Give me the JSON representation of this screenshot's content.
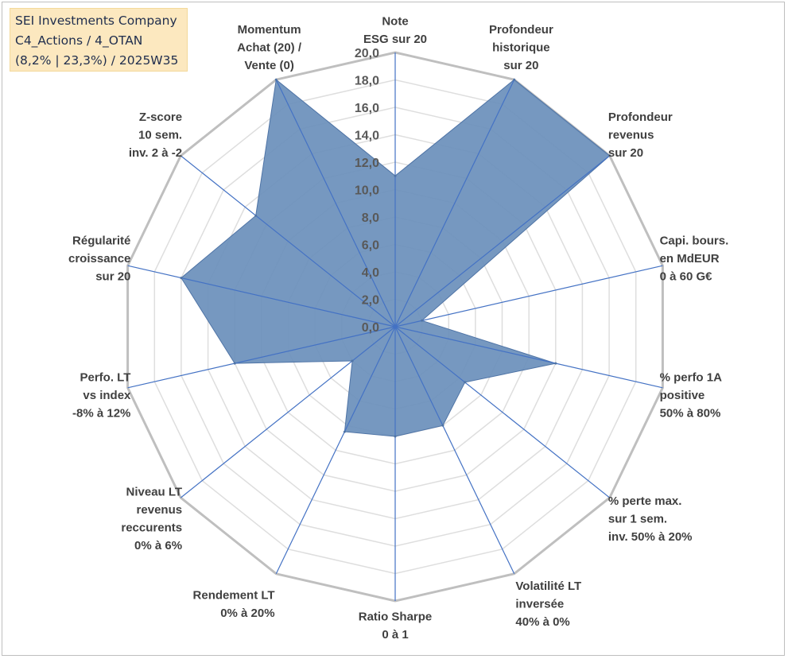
{
  "info_box": {
    "line1": "SEI Investments Company",
    "line2": "C4_Actions / 4_OTAN",
    "line3": "(8,2% | 23,3%) / 2025W35"
  },
  "colors": {
    "fill": "#6a8fbb",
    "stroke": "#4f74a6",
    "spokes": "#4472c4",
    "grid_major": "#bfbfbf",
    "grid_minor": "#dedede"
  },
  "chart_data": {
    "type": "radar",
    "rmin": 0,
    "rmax": 20,
    "tick_step": 2,
    "tick_labels": [
      "0,0",
      "2,0",
      "4,0",
      "6,0",
      "8,0",
      "10,0",
      "12,0",
      "14,0",
      "16,0",
      "18,0",
      "20,0"
    ],
    "axes": [
      {
        "label": [
          "Note",
          "ESG sur 20"
        ],
        "value": 11
      },
      {
        "label": [
          "Profondeur",
          "historique",
          "sur 20"
        ],
        "value": 20
      },
      {
        "label": [
          "Profondeur",
          "revenus",
          "sur 20"
        ],
        "value": 20
      },
      {
        "label": [
          "Capi. bours.",
          "en MdEUR",
          "0 à 60 G€"
        ],
        "value": 2
      },
      {
        "label": [
          "% perfo 1A",
          "positive",
          "50% à 80%"
        ],
        "value": 12
      },
      {
        "label": [
          "% perte max.",
          "sur 1 sem.",
          "inv. 50% à 20%"
        ],
        "value": 6.5
      },
      {
        "label": [
          "Volatilité LT",
          "inversée",
          "40% à 0%"
        ],
        "value": 8
      },
      {
        "label": [
          "Ratio Sharpe",
          "0 à 1"
        ],
        "value": 8
      },
      {
        "label": [
          "Rendement LT",
          "0% à 20%"
        ],
        "value": 8.5
      },
      {
        "label": [
          "Niveau LT",
          "revenus",
          "reccurents",
          "0% à 6%"
        ],
        "value": 4
      },
      {
        "label": [
          "Perfo. LT",
          "vs index",
          "-8% à 12%"
        ],
        "value": 12
      },
      {
        "label": [
          "Régularité",
          "croissance",
          "sur 20"
        ],
        "value": 16
      },
      {
        "label": [
          "Z-score",
          "10 sem.",
          "inv. 2 à -2"
        ],
        "value": 13
      },
      {
        "label": [
          "Momentum",
          "Achat (20) /",
          "Vente (0)"
        ],
        "value": 20
      }
    ]
  }
}
